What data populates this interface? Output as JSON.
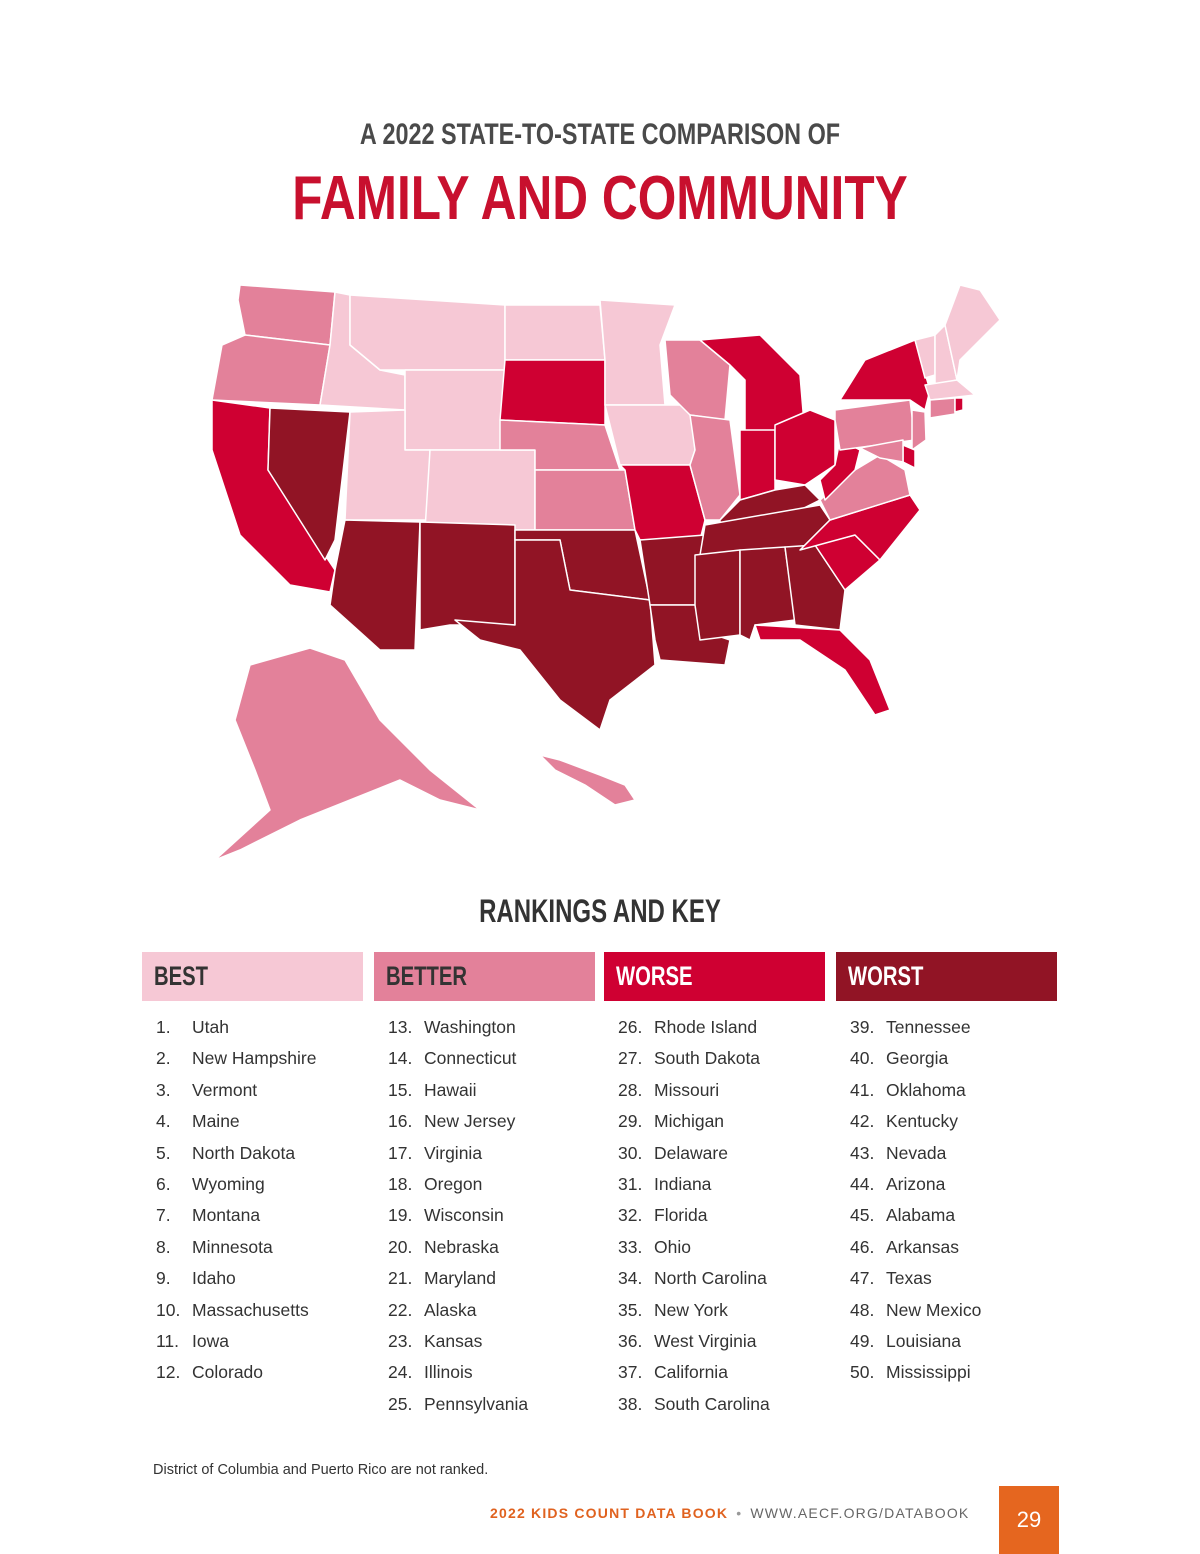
{
  "header": {
    "subtitle": "A 2022 STATE-TO-STATE COMPARISON OF",
    "title": "FAMILY AND COMMUNITY"
  },
  "key": {
    "title": "RANKINGS AND KEY",
    "groups": [
      {
        "label": "BEST",
        "color": "#f6c8d5",
        "text_color": "#333333",
        "items": [
          [
            "1.",
            "Utah"
          ],
          [
            "2.",
            "New Hampshire"
          ],
          [
            "3.",
            "Vermont"
          ],
          [
            "4.",
            "Maine"
          ],
          [
            "5.",
            "North Dakota"
          ],
          [
            "6.",
            "Wyoming"
          ],
          [
            "7.",
            "Montana"
          ],
          [
            "8.",
            "Minnesota"
          ],
          [
            "9.",
            "Idaho"
          ],
          [
            "10.",
            "Massachusetts"
          ],
          [
            "11.",
            "Iowa"
          ],
          [
            "12.",
            "Colorado"
          ]
        ]
      },
      {
        "label": "BETTER",
        "color": "#e3819a",
        "text_color": "#333333",
        "items": [
          [
            "13.",
            "Washington"
          ],
          [
            "14.",
            "Connecticut"
          ],
          [
            "15.",
            "Hawaii"
          ],
          [
            "16.",
            "New Jersey"
          ],
          [
            "17.",
            "Virginia"
          ],
          [
            "18.",
            "Oregon"
          ],
          [
            "19.",
            "Wisconsin"
          ],
          [
            "20.",
            "Nebraska"
          ],
          [
            "21.",
            "Maryland"
          ],
          [
            "22.",
            "Alaska"
          ],
          [
            "23.",
            "Kansas"
          ],
          [
            "24.",
            "Illinois"
          ],
          [
            "25.",
            "Pennsylvania"
          ]
        ]
      },
      {
        "label": "WORSE",
        "color": "#cf0032",
        "text_color": "#ffffff",
        "items": [
          [
            "26.",
            "Rhode Island"
          ],
          [
            "27.",
            "South Dakota"
          ],
          [
            "28.",
            "Missouri"
          ],
          [
            "29.",
            "Michigan"
          ],
          [
            "30.",
            "Delaware"
          ],
          [
            "31.",
            "Indiana"
          ],
          [
            "32.",
            "Florida"
          ],
          [
            "33.",
            "Ohio"
          ],
          [
            "34.",
            "North Carolina"
          ],
          [
            "35.",
            "New York"
          ],
          [
            "36.",
            "West Virginia"
          ],
          [
            "37.",
            "California"
          ],
          [
            "38.",
            "South Carolina"
          ]
        ]
      },
      {
        "label": "WORST",
        "color": "#911425",
        "text_color": "#ffffff",
        "items": [
          [
            "39.",
            "Tennessee"
          ],
          [
            "40.",
            "Georgia"
          ],
          [
            "41.",
            "Oklahoma"
          ],
          [
            "42.",
            "Kentucky"
          ],
          [
            "43.",
            "Nevada"
          ],
          [
            "44.",
            "Arizona"
          ],
          [
            "45.",
            "Alabama"
          ],
          [
            "46.",
            "Arkansas"
          ],
          [
            "47.",
            "Texas"
          ],
          [
            "48.",
            "New Mexico"
          ],
          [
            "49.",
            "Louisiana"
          ],
          [
            "50.",
            "Mississippi"
          ]
        ]
      }
    ]
  },
  "note": "District of Columbia and Puerto Rico are not ranked.",
  "footer": {
    "book": "2022 KIDS COUNT DATA BOOK",
    "separator": "•",
    "url": "WWW.AECF.ORG/DATABOOK",
    "page": "29"
  }
}
